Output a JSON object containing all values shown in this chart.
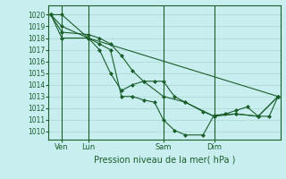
{
  "background_color": "#c8eef0",
  "grid_color": "#a8d8cc",
  "line_color": "#1a5e2a",
  "title": "Pression niveau de la mer( hPa )",
  "ylim": [
    1009.3,
    1020.8
  ],
  "yticks": [
    1010,
    1011,
    1012,
    1013,
    1014,
    1015,
    1016,
    1017,
    1018,
    1019,
    1020
  ],
  "xlim": [
    0,
    10.5
  ],
  "xtick_labels": [
    "Ven",
    "Lun",
    "Sam",
    "Dim"
  ],
  "xtick_positions": [
    0.6,
    1.8,
    5.2,
    7.5
  ],
  "vlines": [
    0.6,
    1.8,
    5.2,
    7.5
  ],
  "series": [
    {
      "x": [
        0.1,
        0.6,
        1.8,
        10.4
      ],
      "y": [
        1020,
        1020,
        1018,
        1013
      ]
    },
    {
      "x": [
        0.1,
        0.6,
        1.8,
        2.3,
        2.8,
        3.3,
        3.8,
        4.3,
        5.2,
        6.2,
        7.5,
        8.5,
        9.5,
        10.4
      ],
      "y": [
        1020,
        1019,
        1018,
        1017,
        1015,
        1013.5,
        1014,
        1014.3,
        1013,
        1012.5,
        1011.3,
        1011.5,
        1011.3,
        1013
      ]
    },
    {
      "x": [
        0.1,
        0.6,
        1.8,
        2.3,
        2.8,
        3.3,
        3.8,
        4.3,
        4.8,
        5.2,
        5.7,
        6.2,
        7.0,
        7.5,
        8.5,
        9.5,
        10.4
      ],
      "y": [
        1020,
        1018,
        1018,
        1017.5,
        1017,
        1013,
        1013,
        1012.7,
        1012.5,
        1011,
        1010.1,
        1009.7,
        1009.7,
        1011.4,
        1011.5,
        1011.3,
        1013
      ]
    },
    {
      "x": [
        0.1,
        0.6,
        1.8,
        2.3,
        2.8,
        3.3,
        3.8,
        4.3,
        4.8,
        5.2,
        5.7,
        6.2,
        7.0,
        7.5,
        8.0,
        8.5,
        9.0,
        9.5,
        10.0,
        10.4
      ],
      "y": [
        1020,
        1018.5,
        1018.3,
        1018,
        1017.5,
        1016.5,
        1015.2,
        1014.3,
        1014.3,
        1014.3,
        1013,
        1012.5,
        1011.7,
        1011.3,
        1011.5,
        1011.8,
        1012.1,
        1011.3,
        1011.3,
        1013
      ]
    }
  ]
}
